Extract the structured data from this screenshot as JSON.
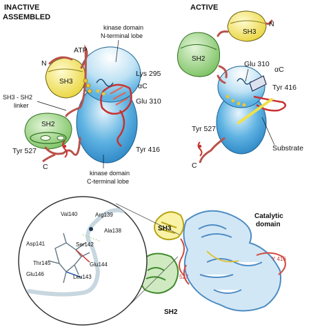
{
  "panels": {
    "inactive": {
      "title_line1": "INACTIVE",
      "title_line2": "ASSEMBLED",
      "n_term": "N",
      "c_term": "C",
      "sh3": "SH3",
      "sh2": "SH2",
      "atp": "ATP",
      "kinase_n_lobe_line1": "kinase domain",
      "kinase_n_lobe_line2": "N-terminal lobe",
      "kinase_c_lobe_line1": "kinase domain",
      "kinase_c_lobe_line2": "C-terminal lobe",
      "lys295": "Lys 295",
      "alpha_c": "αC",
      "glu310": "Glu 310",
      "tyr416": "Tyr 416",
      "tyr527": "Tyr 527",
      "linker_line1": "SH3 - SH2",
      "linker_line2": "linker"
    },
    "active": {
      "title": "ACTIVE",
      "n_term": "N",
      "c_term": "C",
      "sh3": "SH3",
      "sh2": "SH2",
      "glu310": "Glu 310",
      "alpha_c": "αC",
      "tyr416": "Tyr 416",
      "tyr527": "Tyr 527",
      "substrate": "Substrate"
    }
  },
  "structure": {
    "inset_residues": [
      "Val140",
      "Arg139",
      "Ala138",
      "Asp141",
      "Ser142",
      "Thr145",
      "Glu144",
      "Glu146",
      "Leu143"
    ],
    "sh3": "SH3",
    "sh2": "SH2",
    "catalytic_line1": "Catalytic",
    "catalytic_line2": "domain",
    "y416": "Y 416",
    "res527": "527"
  },
  "colors": {
    "sh3": "#f6e96a",
    "sh2": "#a8d98e",
    "kinase": "#3f9fd8",
    "linker": "#b9524b",
    "red": "#c8322f",
    "helix": "#e8604c"
  }
}
